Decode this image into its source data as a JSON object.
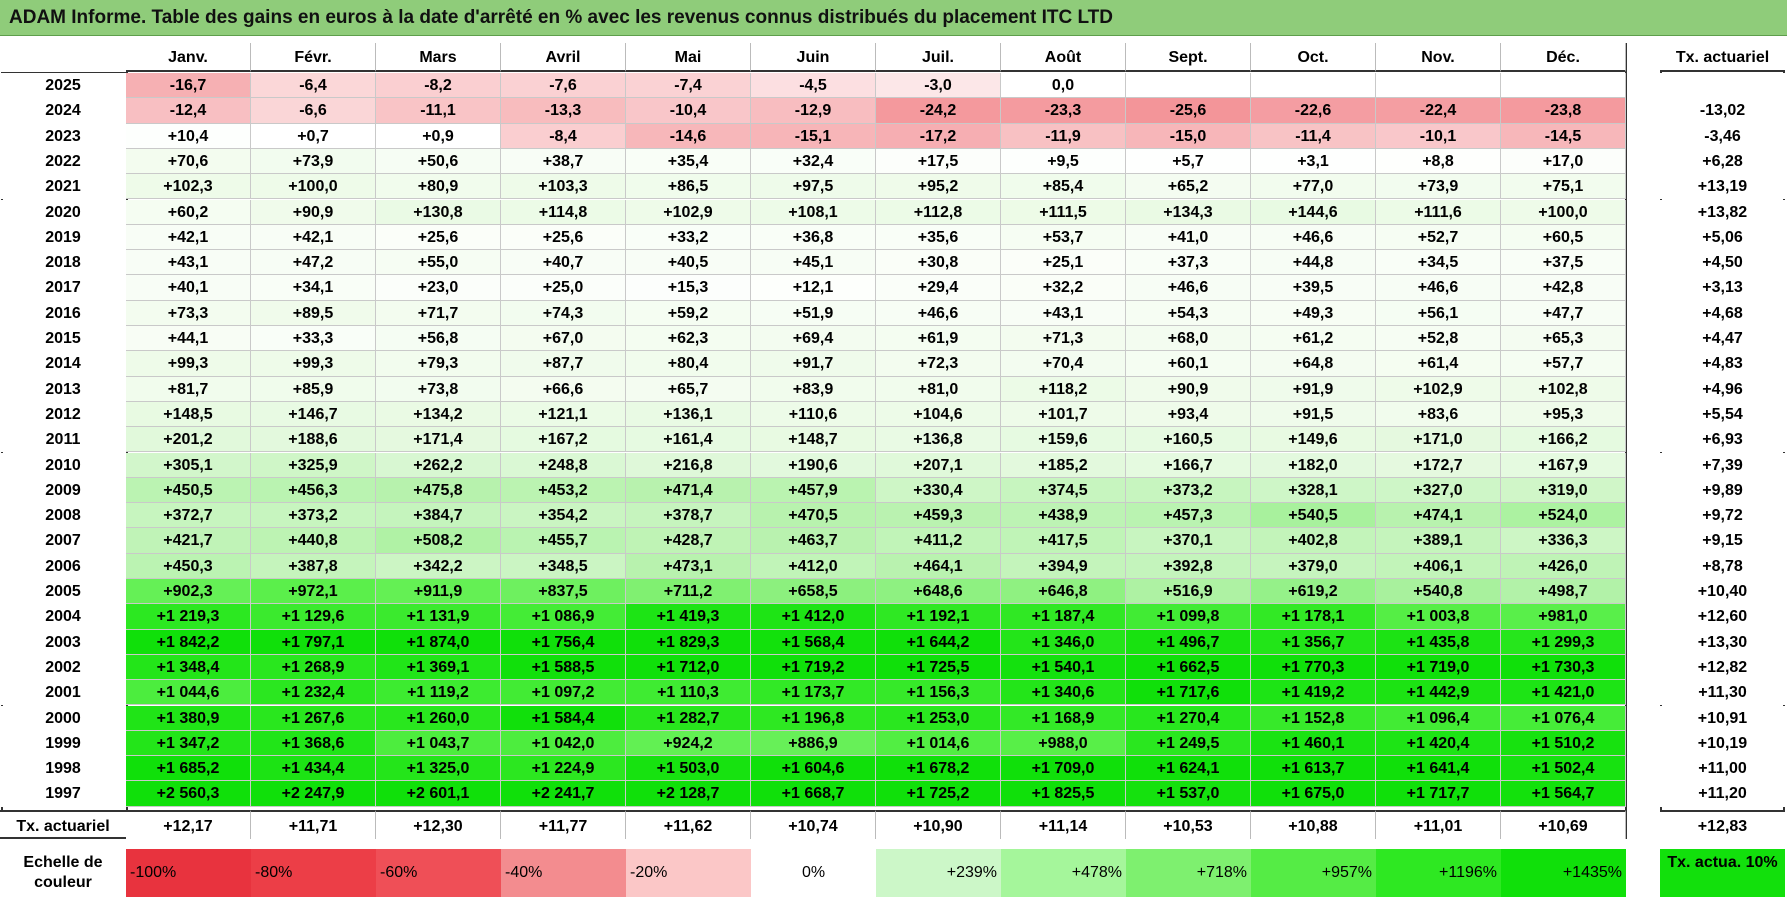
{
  "title": "ADAM Informe. Table des gains en euros à la date d'arrêté en % avec les revenus connus distribués du placement ITC LTD",
  "chart_data": {
    "type": "table",
    "title": "ADAM Informe. Table des gains en euros à la date d'arrêté en % avec les revenus connus distribués du placement ITC LTD",
    "columns": [
      "Janv.",
      "Févr.",
      "Mars",
      "Avril",
      "Mai",
      "Juin",
      "Juil.",
      "Août",
      "Sept.",
      "Oct.",
      "Nov.",
      "Déc."
    ],
    "rate_header": "Tx. actuariel",
    "rows": [
      {
        "year": "2025",
        "values": [
          "-16,7",
          "-6,4",
          "-8,2",
          "-7,6",
          "-7,4",
          "-4,5",
          "-3,0",
          "0,0",
          "",
          "",
          "",
          ""
        ],
        "rate": ""
      },
      {
        "year": "2024",
        "values": [
          "-12,4",
          "-6,6",
          "-11,1",
          "-13,3",
          "-10,4",
          "-12,9",
          "-24,2",
          "-23,3",
          "-25,6",
          "-22,6",
          "-22,4",
          "-23,8"
        ],
        "rate": "-13,02"
      },
      {
        "year": "2023",
        "values": [
          "+10,4",
          "+0,7",
          "+0,9",
          "-8,4",
          "-14,6",
          "-15,1",
          "-17,2",
          "-11,9",
          "-15,0",
          "-11,4",
          "-10,1",
          "-14,5"
        ],
        "rate": "-3,46"
      },
      {
        "year": "2022",
        "values": [
          "+70,6",
          "+73,9",
          "+50,6",
          "+38,7",
          "+35,4",
          "+32,4",
          "+17,5",
          "+9,5",
          "+5,7",
          "+3,1",
          "+8,8",
          "+17,0"
        ],
        "rate": "+6,28"
      },
      {
        "year": "2021",
        "values": [
          "+102,3",
          "+100,0",
          "+80,9",
          "+103,3",
          "+86,5",
          "+97,5",
          "+95,2",
          "+85,4",
          "+65,2",
          "+77,0",
          "+73,9",
          "+75,1"
        ],
        "rate": "+13,19"
      },
      {
        "year": "2020",
        "values": [
          "+60,2",
          "+90,9",
          "+130,8",
          "+114,8",
          "+102,9",
          "+108,1",
          "+112,8",
          "+111,5",
          "+134,3",
          "+144,6",
          "+111,6",
          "+100,0"
        ],
        "rate": "+13,82"
      },
      {
        "year": "2019",
        "values": [
          "+42,1",
          "+42,1",
          "+25,6",
          "+25,6",
          "+33,2",
          "+36,8",
          "+35,6",
          "+53,7",
          "+41,0",
          "+46,6",
          "+52,7",
          "+60,5"
        ],
        "rate": "+5,06"
      },
      {
        "year": "2018",
        "values": [
          "+43,1",
          "+47,2",
          "+55,0",
          "+40,7",
          "+40,5",
          "+45,1",
          "+30,8",
          "+25,1",
          "+37,3",
          "+44,8",
          "+34,5",
          "+37,5"
        ],
        "rate": "+4,50"
      },
      {
        "year": "2017",
        "values": [
          "+40,1",
          "+34,1",
          "+23,0",
          "+25,0",
          "+15,3",
          "+12,1",
          "+29,4",
          "+32,2",
          "+46,6",
          "+39,5",
          "+46,6",
          "+42,8"
        ],
        "rate": "+3,13"
      },
      {
        "year": "2016",
        "values": [
          "+73,3",
          "+89,5",
          "+71,7",
          "+74,3",
          "+59,2",
          "+51,9",
          "+46,6",
          "+43,1",
          "+54,3",
          "+49,3",
          "+56,1",
          "+47,7"
        ],
        "rate": "+4,68"
      },
      {
        "year": "2015",
        "values": [
          "+44,1",
          "+33,3",
          "+56,8",
          "+67,0",
          "+62,3",
          "+69,4",
          "+61,9",
          "+71,3",
          "+68,0",
          "+61,2",
          "+52,8",
          "+65,3"
        ],
        "rate": "+4,47"
      },
      {
        "year": "2014",
        "values": [
          "+99,3",
          "+99,3",
          "+79,3",
          "+87,7",
          "+80,4",
          "+91,7",
          "+72,3",
          "+70,4",
          "+60,1",
          "+64,8",
          "+61,4",
          "+57,7"
        ],
        "rate": "+4,83"
      },
      {
        "year": "2013",
        "values": [
          "+81,7",
          "+85,9",
          "+73,8",
          "+66,6",
          "+65,7",
          "+83,9",
          "+81,0",
          "+118,2",
          "+90,9",
          "+91,9",
          "+102,9",
          "+102,8"
        ],
        "rate": "+4,96"
      },
      {
        "year": "2012",
        "values": [
          "+148,5",
          "+146,7",
          "+134,2",
          "+121,1",
          "+136,1",
          "+110,6",
          "+104,6",
          "+101,7",
          "+93,4",
          "+91,5",
          "+83,6",
          "+95,3"
        ],
        "rate": "+5,54"
      },
      {
        "year": "2011",
        "values": [
          "+201,2",
          "+188,6",
          "+171,4",
          "+167,2",
          "+161,4",
          "+148,7",
          "+136,8",
          "+159,6",
          "+160,5",
          "+149,6",
          "+171,0",
          "+166,2"
        ],
        "rate": "+6,93"
      },
      {
        "year": "2010",
        "values": [
          "+305,1",
          "+325,9",
          "+262,2",
          "+248,8",
          "+216,8",
          "+190,6",
          "+207,1",
          "+185,2",
          "+166,7",
          "+182,0",
          "+172,7",
          "+167,9"
        ],
        "rate": "+7,39"
      },
      {
        "year": "2009",
        "values": [
          "+450,5",
          "+456,3",
          "+475,8",
          "+453,2",
          "+471,4",
          "+457,9",
          "+330,4",
          "+374,5",
          "+373,2",
          "+328,1",
          "+327,0",
          "+319,0"
        ],
        "rate": "+9,89"
      },
      {
        "year": "2008",
        "values": [
          "+372,7",
          "+373,2",
          "+384,7",
          "+354,2",
          "+378,7",
          "+470,5",
          "+459,3",
          "+438,9",
          "+457,3",
          "+540,5",
          "+474,1",
          "+524,0"
        ],
        "rate": "+9,72"
      },
      {
        "year": "2007",
        "values": [
          "+421,7",
          "+440,8",
          "+508,2",
          "+455,7",
          "+428,7",
          "+463,7",
          "+411,2",
          "+417,5",
          "+370,1",
          "+402,8",
          "+389,1",
          "+336,3"
        ],
        "rate": "+9,15"
      },
      {
        "year": "2006",
        "values": [
          "+450,3",
          "+387,8",
          "+342,2",
          "+348,5",
          "+473,1",
          "+412,0",
          "+464,1",
          "+394,9",
          "+392,8",
          "+379,0",
          "+406,1",
          "+426,0"
        ],
        "rate": "+8,78"
      },
      {
        "year": "2005",
        "values": [
          "+902,3",
          "+972,1",
          "+911,9",
          "+837,5",
          "+711,2",
          "+658,5",
          "+648,6",
          "+646,8",
          "+516,9",
          "+619,2",
          "+540,8",
          "+498,7"
        ],
        "rate": "+10,40"
      },
      {
        "year": "2004",
        "values": [
          "+1 219,3",
          "+1 129,6",
          "+1 131,9",
          "+1 086,9",
          "+1 419,3",
          "+1 412,0",
          "+1 192,1",
          "+1 187,4",
          "+1 099,8",
          "+1 178,1",
          "+1 003,8",
          "+981,0"
        ],
        "rate": "+12,60"
      },
      {
        "year": "2003",
        "values": [
          "+1 842,2",
          "+1 797,1",
          "+1 874,0",
          "+1 756,4",
          "+1 829,3",
          "+1 568,4",
          "+1 644,2",
          "+1 346,0",
          "+1 496,7",
          "+1 356,7",
          "+1 435,8",
          "+1 299,3"
        ],
        "rate": "+13,30"
      },
      {
        "year": "2002",
        "values": [
          "+1 348,4",
          "+1 268,9",
          "+1 369,1",
          "+1 588,5",
          "+1 712,0",
          "+1 719,2",
          "+1 725,5",
          "+1 540,1",
          "+1 662,5",
          "+1 770,3",
          "+1 719,0",
          "+1 730,3"
        ],
        "rate": "+12,82"
      },
      {
        "year": "2001",
        "values": [
          "+1 044,6",
          "+1 232,4",
          "+1 119,2",
          "+1 097,2",
          "+1 110,3",
          "+1 173,7",
          "+1 156,3",
          "+1 340,6",
          "+1 717,6",
          "+1 419,2",
          "+1 442,9",
          "+1 421,0"
        ],
        "rate": "+11,30"
      },
      {
        "year": "2000",
        "values": [
          "+1 380,9",
          "+1 267,6",
          "+1 260,0",
          "+1 584,4",
          "+1 282,7",
          "+1 196,8",
          "+1 253,0",
          "+1 168,9",
          "+1 270,4",
          "+1 152,8",
          "+1 096,4",
          "+1 076,4"
        ],
        "rate": "+10,91"
      },
      {
        "year": "1999",
        "values": [
          "+1 347,2",
          "+1 368,6",
          "+1 043,7",
          "+1 042,0",
          "+924,2",
          "+886,9",
          "+1 014,6",
          "+988,0",
          "+1 249,5",
          "+1 460,1",
          "+1 420,4",
          "+1 510,2"
        ],
        "rate": "+10,19"
      },
      {
        "year": "1998",
        "values": [
          "+1 685,2",
          "+1 434,4",
          "+1 325,0",
          "+1 224,9",
          "+1 503,0",
          "+1 604,6",
          "+1 678,2",
          "+1 709,0",
          "+1 624,1",
          "+1 613,7",
          "+1 641,4",
          "+1 502,4"
        ],
        "rate": "+11,00"
      },
      {
        "year": "1997",
        "values": [
          "+2 560,3",
          "+2 247,9",
          "+2 601,1",
          "+2 241,7",
          "+2 128,7",
          "+1 668,7",
          "+1 725,2",
          "+1 825,5",
          "+1 537,0",
          "+1 675,0",
          "+1 717,7",
          "+1 564,7"
        ],
        "rate": "+11,20"
      }
    ],
    "footer": {
      "label": "Tx. actuariel",
      "values": [
        "+12,17",
        "+11,71",
        "+12,30",
        "+11,77",
        "+11,62",
        "+10,74",
        "+10,90",
        "+11,14",
        "+10,53",
        "+10,88",
        "+11,01",
        "+10,69"
      ],
      "total": "+12,83"
    },
    "color_scale": {
      "label": "Echelle de couleur",
      "stops": [
        {
          "text": "-100%",
          "value": -100,
          "color": "#e8333e"
        },
        {
          "text": "-80%",
          "value": -80,
          "color": "#ec3e47"
        },
        {
          "text": "-60%",
          "value": -60,
          "color": "#ef4f57"
        },
        {
          "text": "-40%",
          "value": -40,
          "color": "#f38c8f"
        },
        {
          "text": "-20%",
          "value": -20,
          "color": "#fbc7c7"
        },
        {
          "text": "0%",
          "value": 0,
          "color": "#ffffff"
        },
        {
          "text": "+239%",
          "value": 239,
          "color": "#ccf7c8"
        },
        {
          "text": "+478%",
          "value": 478,
          "color": "#a5f69b"
        },
        {
          "text": "+718%",
          "value": 718,
          "color": "#7ef06f"
        },
        {
          "text": "+957%",
          "value": 957,
          "color": "#55ec45"
        },
        {
          "text": "+1196%",
          "value": 1196,
          "color": "#2ee822"
        },
        {
          "text": "+1435%",
          "value": 1435,
          "color": "#10e00a"
        }
      ],
      "rate_box": {
        "text": "Tx. actua. 10%",
        "color": "#12e00c"
      }
    }
  }
}
